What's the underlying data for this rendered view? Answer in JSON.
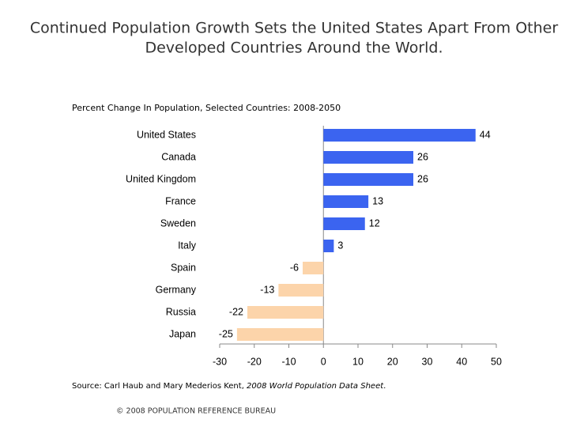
{
  "chart_data": {
    "type": "bar",
    "orientation": "horizontal",
    "title": "Continued Population Growth Sets the United States Apart From Other",
    "title_line2": "Developed Countries Around the World.",
    "subtitle": "Percent Change In Population, Selected Countries: 2008-2050",
    "categories": [
      "United States",
      "Canada",
      "United Kingdom",
      "France",
      "Sweden",
      "Italy",
      "Spain",
      "Germany",
      "Russia",
      "Japan"
    ],
    "values": [
      44,
      26,
      26,
      13,
      12,
      3,
      -6,
      -13,
      -22,
      -25
    ],
    "color": "#3b64f0",
    "negative_color": "#fcd4aa",
    "xlim": [
      -30,
      50
    ],
    "xticks": [
      -30,
      -20,
      -10,
      0,
      10,
      20,
      30,
      40,
      50
    ],
    "grid": false,
    "source": {
      "prefix": "Source: Carl Haub and Mary Mederios Kent, ",
      "publication": "2008 World Population Data Sheet",
      "suffix": "."
    },
    "footer": "© 2008 POPULATION REFERENCE BUREAU"
  }
}
